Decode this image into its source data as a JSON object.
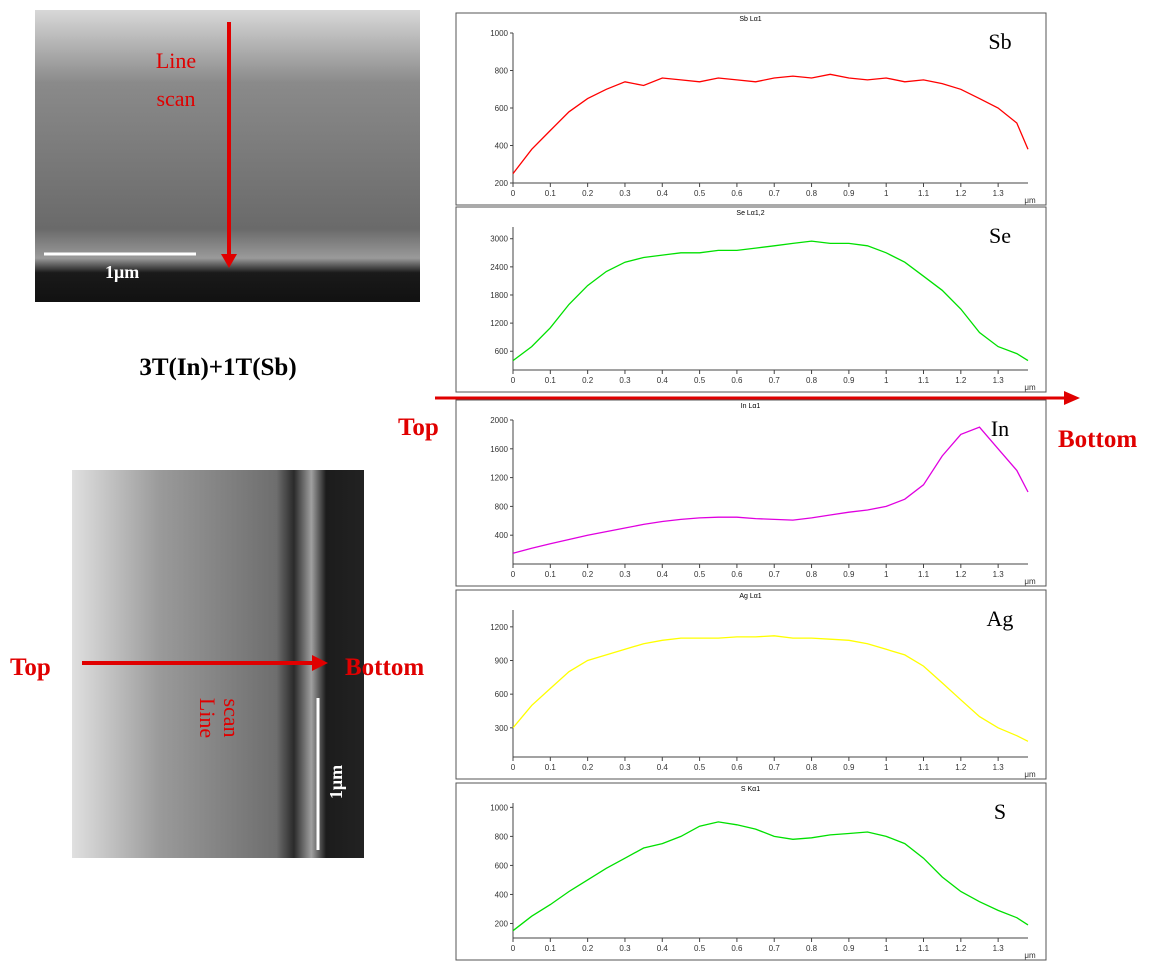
{
  "chart_data": [
    {
      "type": "line",
      "title": "Sb Lα1",
      "label": "Sb",
      "xlabel": "μm",
      "color": "#ff0000",
      "x": [
        0,
        0.05,
        0.1,
        0.15,
        0.2,
        0.25,
        0.3,
        0.35,
        0.4,
        0.45,
        0.5,
        0.55,
        0.6,
        0.65,
        0.7,
        0.75,
        0.8,
        0.85,
        0.9,
        0.95,
        1,
        1.05,
        1.1,
        1.15,
        1.2,
        1.25,
        1.3,
        1.35,
        1.38
      ],
      "values": [
        250,
        380,
        480,
        580,
        650,
        700,
        740,
        720,
        760,
        750,
        740,
        760,
        750,
        740,
        760,
        770,
        760,
        780,
        760,
        750,
        760,
        740,
        750,
        730,
        700,
        650,
        600,
        520,
        380
      ],
      "xlim": [
        0,
        1.38
      ],
      "xticks": [
        0,
        0.1,
        0.2,
        0.3,
        0.4,
        0.5,
        0.6,
        0.7,
        0.8,
        0.9,
        1,
        1.1,
        1.2,
        1.3
      ],
      "ylim": [
        200,
        1000
      ],
      "yticks": [
        200,
        400,
        600,
        800,
        1000
      ]
    },
    {
      "type": "line",
      "title": "Se Lα1,2",
      "label": "Se",
      "xlabel": "μm",
      "color": "#00e000",
      "x": [
        0,
        0.05,
        0.1,
        0.15,
        0.2,
        0.25,
        0.3,
        0.35,
        0.4,
        0.45,
        0.5,
        0.55,
        0.6,
        0.65,
        0.7,
        0.75,
        0.8,
        0.85,
        0.9,
        0.95,
        1,
        1.05,
        1.1,
        1.15,
        1.2,
        1.25,
        1.3,
        1.35,
        1.38
      ],
      "values": [
        400,
        700,
        1100,
        1600,
        2000,
        2300,
        2500,
        2600,
        2650,
        2700,
        2700,
        2750,
        2750,
        2800,
        2850,
        2900,
        2950,
        2900,
        2900,
        2850,
        2700,
        2500,
        2200,
        1900,
        1500,
        1000,
        700,
        550,
        400
      ],
      "xlim": [
        0,
        1.38
      ],
      "xticks": [
        0,
        0.1,
        0.2,
        0.3,
        0.4,
        0.5,
        0.6,
        0.7,
        0.8,
        0.9,
        1,
        1.1,
        1.2,
        1.3
      ],
      "ylim": [
        200,
        3250
      ],
      "yticks": [
        600,
        1200,
        1800,
        2400,
        3000
      ]
    },
    {
      "type": "line",
      "title": "In Lα1",
      "label": "In",
      "xlabel": "μm",
      "color": "#e000e0",
      "x": [
        0,
        0.05,
        0.1,
        0.15,
        0.2,
        0.25,
        0.3,
        0.35,
        0.4,
        0.45,
        0.5,
        0.55,
        0.6,
        0.65,
        0.7,
        0.75,
        0.8,
        0.85,
        0.9,
        0.95,
        1,
        1.05,
        1.1,
        1.15,
        1.2,
        1.25,
        1.3,
        1.35,
        1.38
      ],
      "values": [
        150,
        220,
        280,
        340,
        400,
        450,
        500,
        550,
        590,
        620,
        640,
        650,
        650,
        630,
        620,
        610,
        640,
        680,
        720,
        750,
        800,
        900,
        1100,
        1500,
        1800,
        1900,
        1600,
        1300,
        1000
      ],
      "xlim": [
        0,
        1.38
      ],
      "xticks": [
        0,
        0.1,
        0.2,
        0.3,
        0.4,
        0.5,
        0.6,
        0.7,
        0.8,
        0.9,
        1,
        1.1,
        1.2,
        1.3
      ],
      "ylim": [
        0,
        2000
      ],
      "yticks": [
        400,
        800,
        1200,
        1600,
        2000
      ]
    },
    {
      "type": "line",
      "title": "Ag Lα1",
      "label": "Ag",
      "xlabel": "μm",
      "color": "#ffff00",
      "x": [
        0,
        0.05,
        0.1,
        0.15,
        0.2,
        0.25,
        0.3,
        0.35,
        0.4,
        0.45,
        0.5,
        0.55,
        0.6,
        0.65,
        0.7,
        0.75,
        0.8,
        0.85,
        0.9,
        0.95,
        1,
        1.05,
        1.1,
        1.15,
        1.2,
        1.25,
        1.3,
        1.35,
        1.38
      ],
      "values": [
        300,
        500,
        650,
        800,
        900,
        950,
        1000,
        1050,
        1080,
        1100,
        1100,
        1100,
        1110,
        1110,
        1120,
        1100,
        1100,
        1090,
        1080,
        1050,
        1000,
        950,
        850,
        700,
        550,
        400,
        300,
        230,
        180
      ],
      "xlim": [
        0,
        1.38
      ],
      "xticks": [
        0,
        0.1,
        0.2,
        0.3,
        0.4,
        0.5,
        0.6,
        0.7,
        0.8,
        0.9,
        1,
        1.1,
        1.2,
        1.3
      ],
      "ylim": [
        40,
        1350
      ],
      "yticks": [
        300,
        600,
        900,
        1200
      ]
    },
    {
      "type": "line",
      "title": "S Kα1",
      "label": "S",
      "xlabel": "μm",
      "color": "#00e000",
      "x": [
        0,
        0.05,
        0.1,
        0.15,
        0.2,
        0.25,
        0.3,
        0.35,
        0.4,
        0.45,
        0.5,
        0.55,
        0.6,
        0.65,
        0.7,
        0.75,
        0.8,
        0.85,
        0.9,
        0.95,
        1,
        1.05,
        1.1,
        1.15,
        1.2,
        1.25,
        1.3,
        1.35,
        1.38
      ],
      "values": [
        150,
        250,
        330,
        420,
        500,
        580,
        650,
        720,
        750,
        800,
        870,
        900,
        880,
        850,
        800,
        780,
        790,
        810,
        820,
        830,
        800,
        750,
        650,
        520,
        420,
        350,
        290,
        240,
        190
      ],
      "xlim": [
        0,
        1.38
      ],
      "xticks": [
        0,
        0.1,
        0.2,
        0.3,
        0.4,
        0.5,
        0.6,
        0.7,
        0.8,
        0.9,
        1,
        1.1,
        1.2,
        1.3
      ],
      "ylim": [
        100,
        1030
      ],
      "yticks": [
        200,
        400,
        600,
        800,
        1000
      ]
    }
  ],
  "annotations": {
    "line_scan_top_1": "Line",
    "line_scan_top_2": "scan",
    "scale_top": "1μm",
    "sample": "3T(In)+1T(Sb)",
    "top_mid": "Top",
    "bottom_mid": "Bottom",
    "top_left": "Top",
    "bottom_left": "Bottom",
    "line_scan_bot_1": "Line",
    "line_scan_bot_2": "scan",
    "scale_bot": "1μm"
  }
}
